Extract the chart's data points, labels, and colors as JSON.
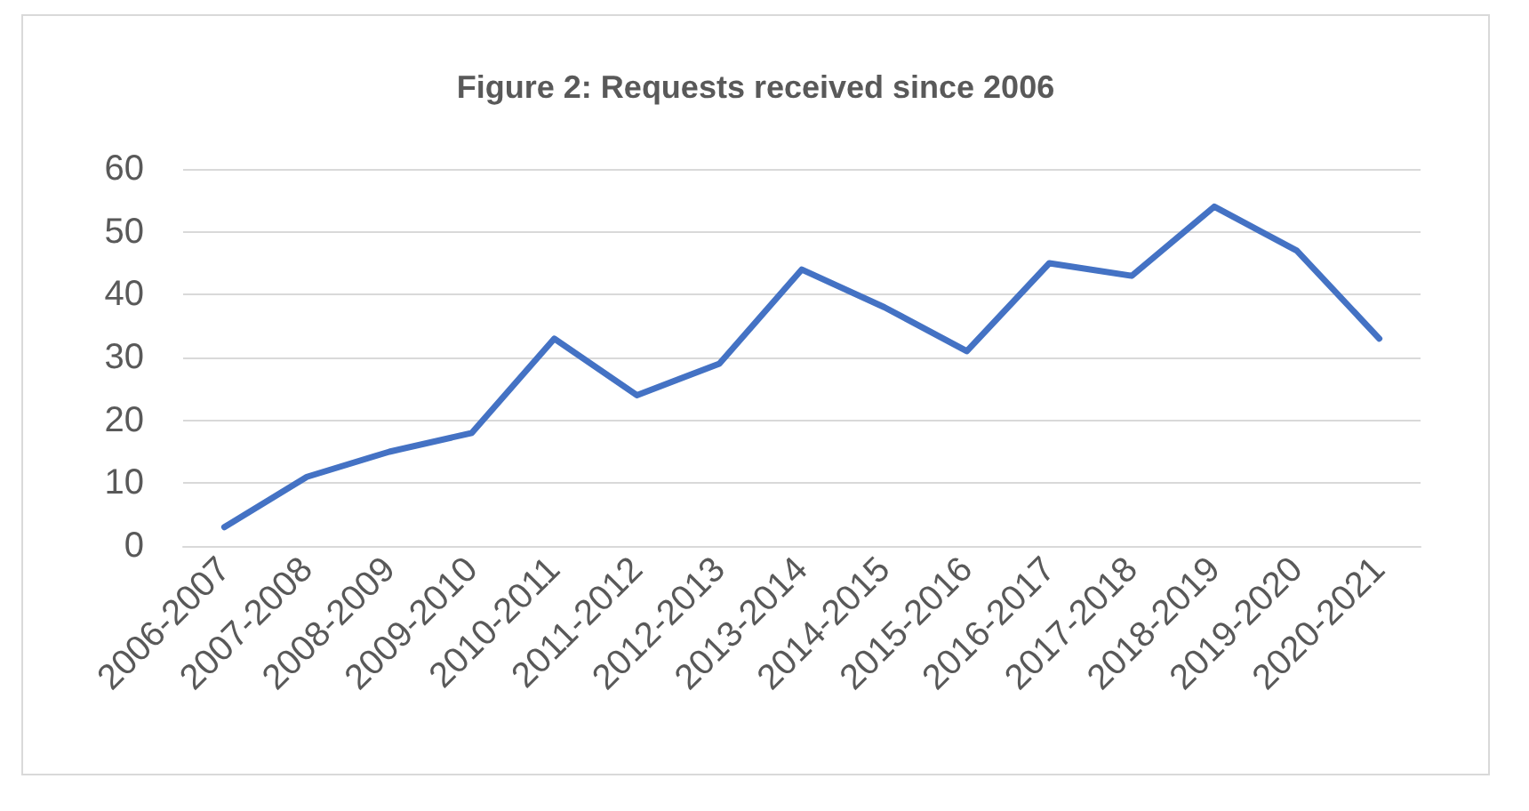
{
  "chart_data": {
    "type": "line",
    "title": "Figure 2: Requests received since 2006",
    "categories": [
      "2006-2007",
      "2007-2008",
      "2008-2009",
      "2009-2010",
      "2010-2011",
      "2011-2012",
      "2012-2013",
      "2013-2014",
      "2014-2015",
      "2015-2016",
      "2016-2017",
      "2017-2018",
      "2018-2019",
      "2019-2020",
      "2020-2021"
    ],
    "series": [
      {
        "color": "#4472c4",
        "values": [
          3,
          11,
          15,
          18,
          33,
          24,
          29,
          44,
          38,
          31,
          45,
          43,
          54,
          47,
          33
        ]
      }
    ],
    "ylim": [
      0,
      60
    ],
    "yticks": [
      0,
      10,
      20,
      30,
      40,
      50,
      60
    ],
    "grid": "y",
    "marker": "none",
    "line_style": "solid"
  }
}
